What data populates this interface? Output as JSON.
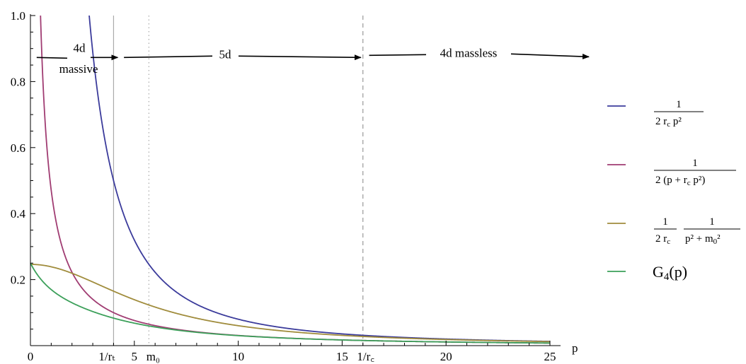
{
  "chart_data": {
    "type": "line",
    "xlabel": "p",
    "ylabel": "",
    "xlim": [
      0,
      25
    ],
    "ylim": [
      0,
      1.0
    ],
    "x_ticks": [
      {
        "value": 0,
        "label": "0"
      },
      {
        "value": 5,
        "label": "5"
      },
      {
        "value": 10,
        "label": "10"
      },
      {
        "value": 15,
        "label": "15"
      },
      {
        "value": 20,
        "label": "20"
      },
      {
        "value": 25,
        "label": "25"
      }
    ],
    "y_ticks": [
      {
        "value": 0.2,
        "label": "0.2"
      },
      {
        "value": 0.4,
        "label": "0.4"
      },
      {
        "value": 0.6,
        "label": "0.6"
      },
      {
        "value": 0.8,
        "label": "0.8"
      },
      {
        "value": 1.0,
        "label": "1.0"
      }
    ],
    "parameters": {
      "r_c": 0.0625,
      "r_t": 0.25,
      "m_0": 5.7
    },
    "vlines": [
      {
        "x": 4,
        "label": "1/rₜ",
        "style": "solid",
        "color": "#aaaaaa"
      },
      {
        "x": 5.7,
        "label": "m₀",
        "style": "dotted",
        "color": "#aaaaaa"
      },
      {
        "x": 16,
        "label": "1/r꜀",
        "style": "dashed",
        "color": "#999999"
      }
    ],
    "regions": [
      {
        "label_line1": "4d",
        "label_line2": "massive",
        "x_from": 0.3,
        "x_to": 4.2
      },
      {
        "label_line1": "5d",
        "x_from": 4.5,
        "x_to": 15.9
      },
      {
        "label_line1": "4d massless",
        "x_from": 16.3,
        "x_to": 26.6
      }
    ],
    "series": [
      {
        "id": "s1",
        "color": "#3b3b9b",
        "legend": {
          "num": "1",
          "den": "2 r",
          "den_sub": "c",
          "den_tail": " p²"
        }
      },
      {
        "id": "s2",
        "color": "#a03c72",
        "legend": {
          "num": "1",
          "den": "2 (p + r",
          "den_sub": "c",
          "den_tail": " p²)"
        }
      },
      {
        "id": "s3",
        "color": "#a08c3c",
        "legend": {
          "num1": "1",
          "den1": "2 r",
          "den1_sub": "c",
          "num2": "1",
          "den2": "p² + m",
          "den2_sub": "0",
          "den2_tail": "²"
        }
      },
      {
        "id": "s4",
        "color": "#3ca05a",
        "legend": {
          "text": "G",
          "sub": "4",
          "tail": "(p)"
        }
      }
    ]
  }
}
